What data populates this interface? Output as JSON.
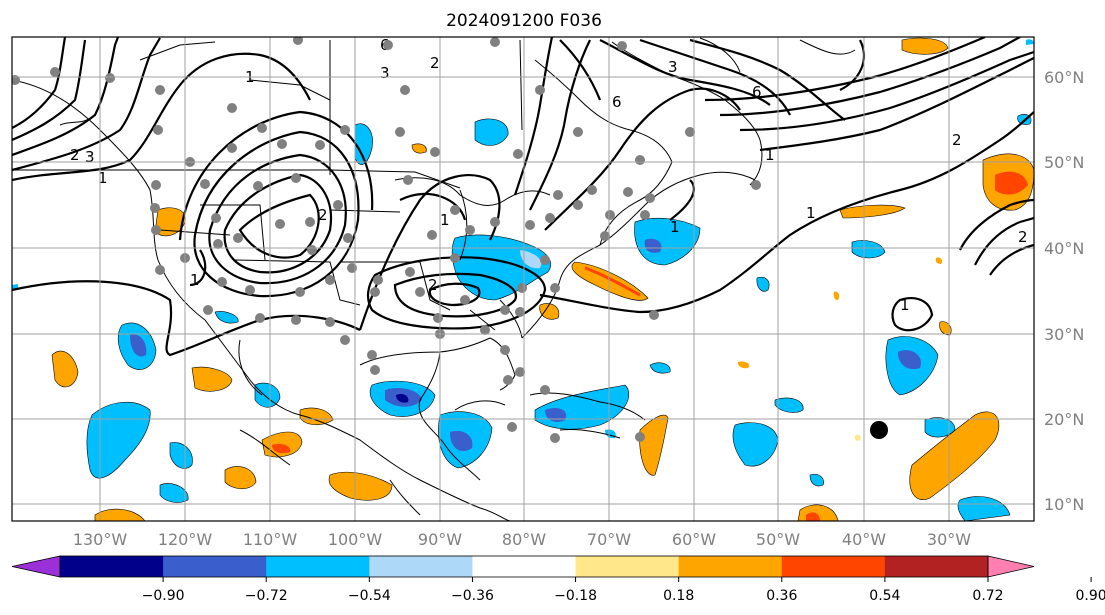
{
  "title": "2024091200 F036",
  "longitude_labels": [
    "130°W",
    "120°W",
    "110°W",
    "100°W",
    "90°W",
    "80°W",
    "70°W",
    "60°W",
    "50°W",
    "40°W",
    "30°W"
  ],
  "latitude_labels": [
    "60°N",
    "50°N",
    "40°N",
    "30°N",
    "20°N",
    "10°N"
  ],
  "colorbar": {
    "ticks": [
      "−0.90",
      "−0.72",
      "−0.54",
      "−0.36",
      "−0.18",
      "0.18",
      "0.36",
      "0.54",
      "0.72",
      "0.90"
    ],
    "colors": [
      "#9b30d9",
      "#00008b",
      "#3a5fcd",
      "#00bfff",
      "#add8f7",
      "#ffffff",
      "#ffe78a",
      "#ffa500",
      "#ff4500",
      "#b22222",
      "#ff7fb0"
    ]
  },
  "contour_labels": [
    "1",
    "2",
    "3",
    "6",
    "1",
    "2",
    "3",
    "1",
    "1",
    "2",
    "6",
    "1",
    "2",
    "1",
    "1",
    "2",
    "1",
    "3",
    "6",
    "2",
    "1"
  ],
  "colors": {
    "grid": "#a0a0a0",
    "contour": "#000000",
    "station_dot": "#808080"
  }
}
